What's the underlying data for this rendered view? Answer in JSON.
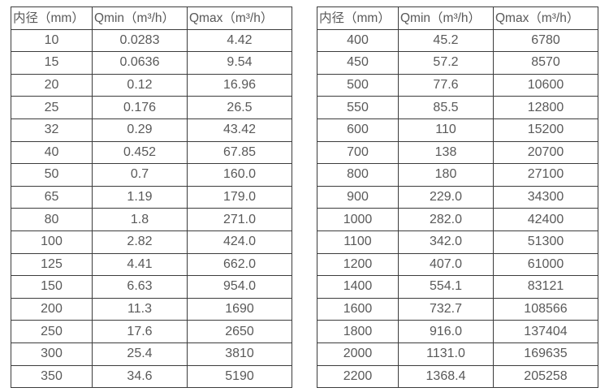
{
  "styles": {
    "border_color": "#3c3c3c",
    "text_color": "#595959",
    "background": "#ffffff"
  },
  "chart_data": [
    {
      "type": "table",
      "columns": [
        "内径（mm）",
        "Qmin（m³/h）",
        "Qmax（m³/h）"
      ],
      "rows": [
        [
          "10",
          "0.0283",
          "4.42"
        ],
        [
          "15",
          "0.0636",
          "9.54"
        ],
        [
          "20",
          "0.12",
          "16.96"
        ],
        [
          "25",
          "0.176",
          "26.5"
        ],
        [
          "32",
          "0.29",
          "43.42"
        ],
        [
          "40",
          "0.452",
          "67.85"
        ],
        [
          "50",
          "0.7",
          "160.0"
        ],
        [
          "65",
          "1.19",
          "179.0"
        ],
        [
          "80",
          "1.8",
          "271.0"
        ],
        [
          "100",
          "2.82",
          "424.0"
        ],
        [
          "125",
          "4.41",
          "662.0"
        ],
        [
          "150",
          "6.63",
          "954.0"
        ],
        [
          "200",
          "11.3",
          "1690"
        ],
        [
          "250",
          "17.6",
          "2650"
        ],
        [
          "300",
          "25.4",
          "3810"
        ],
        [
          "350",
          "34.6",
          "5190"
        ]
      ]
    },
    {
      "type": "table",
      "columns": [
        "内径（mm）",
        "Qmin（m³/h）",
        "Qmax（m³/h）"
      ],
      "rows": [
        [
          "400",
          "45.2",
          "6780"
        ],
        [
          "450",
          "57.2",
          "8570"
        ],
        [
          "500",
          "77.6",
          "10600"
        ],
        [
          "550",
          "85.5",
          "12800"
        ],
        [
          "600",
          "110",
          "15200"
        ],
        [
          "700",
          "138",
          "20700"
        ],
        [
          "800",
          "180",
          "27100"
        ],
        [
          "900",
          "229.0",
          "34300"
        ],
        [
          "1000",
          "282.0",
          "42400"
        ],
        [
          "1100",
          "342.0",
          "51300"
        ],
        [
          "1200",
          "407.0",
          "61000"
        ],
        [
          "1400",
          "554.1",
          "83121"
        ],
        [
          "1600",
          "732.7",
          "108566"
        ],
        [
          "1800",
          "916.0",
          "137404"
        ],
        [
          "2000",
          "1131.0",
          "169635"
        ],
        [
          "2200",
          "1368.4",
          "205258"
        ]
      ]
    }
  ]
}
